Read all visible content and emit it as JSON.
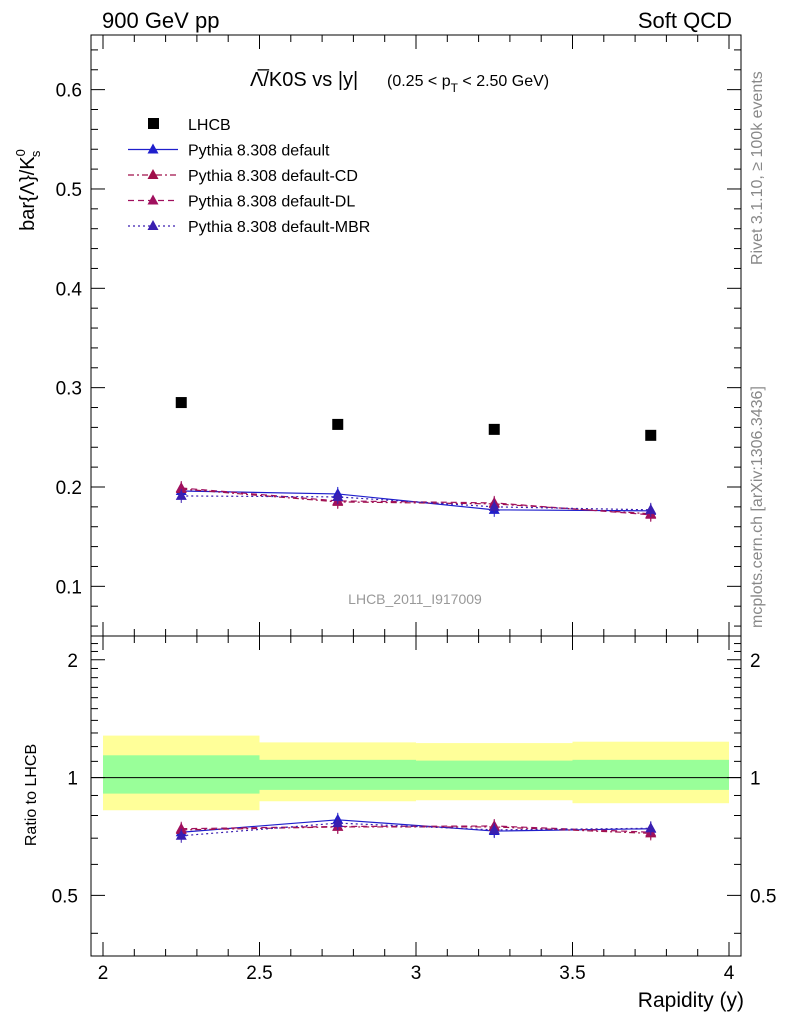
{
  "header": {
    "left": "900 GeV pp",
    "right": "Soft QCD"
  },
  "side_labels": {
    "rivet": "Rivet 3.1.10, ≥ 100k events",
    "mcplots": "mcplots.cern.ch [arXiv:1306.3436]"
  },
  "watermark": "LHCB_2011_I917009",
  "chart_data": [
    {
      "type": "scatter",
      "title": "Λ̅/K0S vs |y|",
      "title_range": "(0.25 < p",
      "title_range_sub": "T",
      "title_range_end": " < 2.50 GeV)",
      "ylabel": "bar{Λ}/K",
      "ylabel_sup": "0",
      "ylabel_sub": "s",
      "xlim": [
        2,
        4
      ],
      "ylim": [
        0.05,
        0.655
      ],
      "yticks": [
        "0.1",
        "0.2",
        "0.3",
        "0.4",
        "0.5",
        "0.6"
      ],
      "ytick_values": [
        0.1,
        0.2,
        0.3,
        0.4,
        0.5,
        0.6
      ],
      "x": [
        2.25,
        2.75,
        3.25,
        3.75
      ],
      "legend_position": "top-left",
      "series": [
        {
          "name": "LHCB",
          "values": [
            0.285,
            0.263,
            0.258,
            0.252
          ],
          "color": "#000000",
          "marker": "square",
          "line": "none"
        },
        {
          "name": "Pythia 8.308 default",
          "values": [
            0.196,
            0.193,
            0.177,
            0.176
          ],
          "color": "#1f1fcc",
          "marker": "triangle",
          "line": "solid"
        },
        {
          "name": "Pythia 8.308 default-CD",
          "values": [
            0.198,
            0.185,
            0.183,
            0.173
          ],
          "color": "#a0104a",
          "marker": "triangle",
          "line": "dashdot"
        },
        {
          "name": "Pythia 8.308 default-DL",
          "values": [
            0.199,
            0.186,
            0.184,
            0.172
          ],
          "color": "#a0105e",
          "marker": "triangle",
          "line": "dashed"
        },
        {
          "name": "Pythia 8.308 default-MBR",
          "values": [
            0.191,
            0.19,
            0.18,
            0.177
          ],
          "color": "#3a1fb0",
          "marker": "triangle",
          "line": "dotted"
        }
      ]
    },
    {
      "type": "line",
      "ylabel": "Ratio to LHCB",
      "xlabel": "Rapidity (y)",
      "xlim": [
        2,
        4
      ],
      "ylim": [
        0.35,
        2.3
      ],
      "log_y": true,
      "xticks": [
        "2",
        "2.5",
        "3",
        "3.5",
        "4"
      ],
      "xtick_values": [
        2,
        2.5,
        3,
        3.5,
        4
      ],
      "yticks": [
        "0.5",
        "1",
        "2"
      ],
      "ytick_values": [
        0.5,
        1,
        2
      ],
      "x": [
        2.25,
        2.75,
        3.25,
        3.75
      ],
      "bins": [
        [
          2.0,
          2.5
        ],
        [
          2.5,
          3.0
        ],
        [
          3.0,
          3.5
        ],
        [
          3.5,
          4.0
        ]
      ],
      "bands": {
        "outer": {
          "color": "#ffff99",
          "low": [
            0.825,
            0.87,
            0.875,
            0.86
          ],
          "high": [
            1.28,
            1.23,
            1.225,
            1.235
          ]
        },
        "inner": {
          "color": "#99ff99",
          "low": [
            0.91,
            0.93,
            0.93,
            0.93
          ],
          "high": [
            1.14,
            1.11,
            1.105,
            1.11
          ]
        }
      },
      "series": [
        {
          "name": "Pythia 8.308 default",
          "values": [
            0.725,
            0.78,
            0.73,
            0.74
          ],
          "color": "#1f1fcc",
          "line": "solid"
        },
        {
          "name": "Pythia 8.308 default-CD",
          "values": [
            0.735,
            0.748,
            0.748,
            0.72
          ],
          "color": "#a0104a",
          "line": "dashdot"
        },
        {
          "name": "Pythia 8.308 default-DL",
          "values": [
            0.74,
            0.75,
            0.752,
            0.725
          ],
          "color": "#a0105e",
          "line": "dashed"
        },
        {
          "name": "Pythia 8.308 default-MBR",
          "values": [
            0.71,
            0.765,
            0.735,
            0.742
          ],
          "color": "#3a1fb0",
          "line": "dotted"
        }
      ]
    }
  ]
}
